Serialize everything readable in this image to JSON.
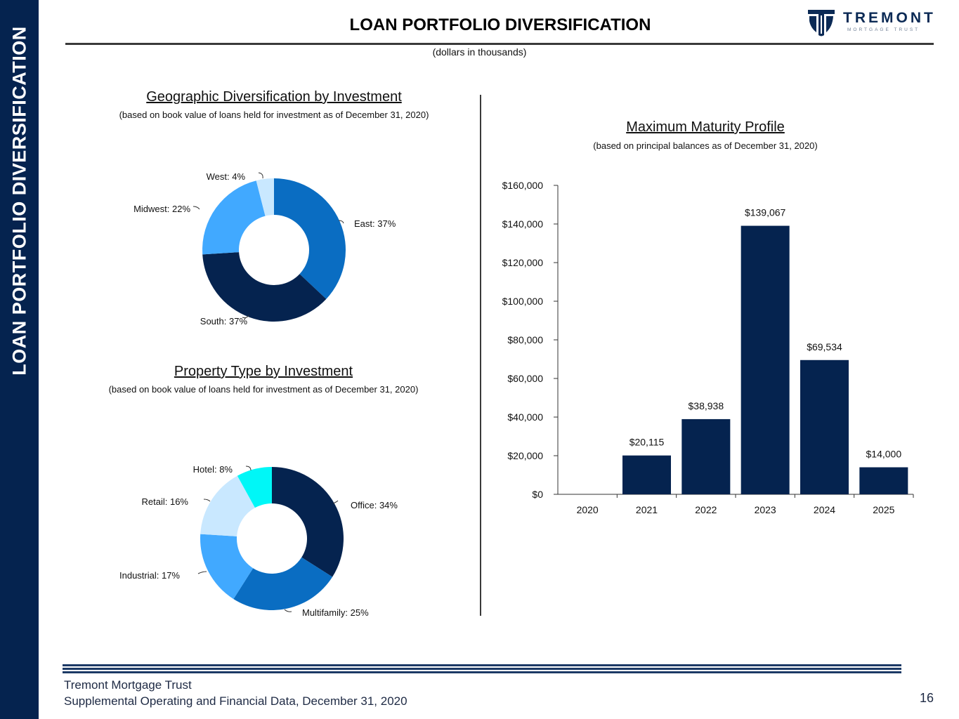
{
  "header": {
    "sidebar_title": "LOAN PORTFOLIO DIVERSIFICATION",
    "title": "LOAN PORTFOLIO DIVERSIFICATION",
    "units": "(dollars in thousands)",
    "logo_word": "TREMONT",
    "logo_sub": "MORTGAGE TRUST"
  },
  "colors": {
    "navy": "#05234f",
    "blue": "#0a6dc2",
    "light_blue": "#41a9ff",
    "pale_blue": "#c9e8ff",
    "cyan": "#00f7f7"
  },
  "chart_data": [
    {
      "type": "pie",
      "title": "Geographic Diversification by Investment",
      "subtitle": "(based on book value of loans held for investment as of December 31, 2020)",
      "slices": [
        {
          "label": "East: 37%",
          "value": 37,
          "color": "#0a6dc2"
        },
        {
          "label": "South: 37%",
          "value": 37,
          "color": "#05234f"
        },
        {
          "label": "Midwest: 22%",
          "value": 22,
          "color": "#41a9ff"
        },
        {
          "label": "West: 4%",
          "value": 4,
          "color": "#c9e8ff"
        }
      ]
    },
    {
      "type": "pie",
      "title": "Property Type by Investment",
      "subtitle": "(based on book value of loans held for investment as of December 31, 2020)",
      "slices": [
        {
          "label": "Office: 34%",
          "value": 34,
          "color": "#05234f"
        },
        {
          "label": "Multifamily: 25%",
          "value": 25,
          "color": "#0a6dc2"
        },
        {
          "label": "Industrial: 17%",
          "value": 17,
          "color": "#41a9ff"
        },
        {
          "label": "Retail: 16%",
          "value": 16,
          "color": "#c9e8ff"
        },
        {
          "label": "Hotel: 8%",
          "value": 8,
          "color": "#00f7f7"
        }
      ]
    },
    {
      "type": "bar",
      "title": "Maximum Maturity Profile",
      "subtitle": "(based on principal balances as of December 31, 2020)",
      "categories": [
        "2020",
        "2021",
        "2022",
        "2023",
        "2024",
        "2025"
      ],
      "values": [
        0,
        20115,
        38938,
        139067,
        69534,
        14000
      ],
      "data_labels": [
        "",
        "$20,115",
        "$38,938",
        "$139,067",
        "$69,534",
        "$14,000"
      ],
      "ylim": [
        0,
        160000
      ],
      "yticks": [
        "$0",
        "$20,000",
        "$40,000",
        "$60,000",
        "$80,000",
        "$100,000",
        "$120,000",
        "$140,000",
        "$160,000"
      ],
      "color": "#05234f"
    }
  ],
  "footer": {
    "company": "Tremont Mortgage Trust",
    "document": "Supplemental Operating and Financial Data, December 31, 2020",
    "page": "16"
  }
}
